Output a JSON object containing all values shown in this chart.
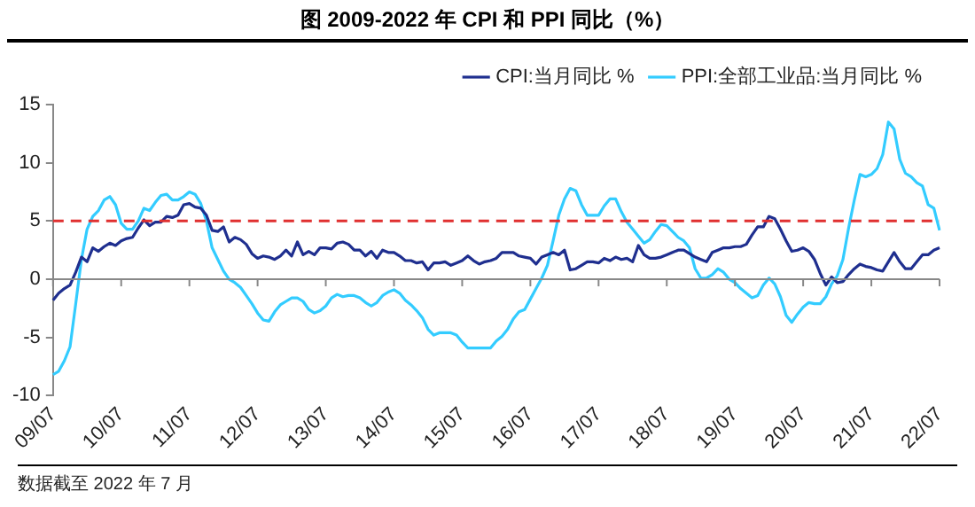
{
  "chart_data": {
    "type": "line",
    "title": "图  2009-2022 年 CPI 和 PPI 同比（%）",
    "categories": [
      "09/07",
      null,
      null,
      null,
      null,
      null,
      null,
      null,
      null,
      null,
      null,
      null,
      "10/07",
      null,
      null,
      null,
      null,
      null,
      null,
      null,
      null,
      null,
      null,
      null,
      "11/07",
      null,
      null,
      null,
      null,
      null,
      null,
      null,
      null,
      null,
      null,
      null,
      "12/07",
      null,
      null,
      null,
      null,
      null,
      null,
      null,
      null,
      null,
      null,
      null,
      "13/07",
      null,
      null,
      null,
      null,
      null,
      null,
      null,
      null,
      null,
      null,
      null,
      "14/07",
      null,
      null,
      null,
      null,
      null,
      null,
      null,
      null,
      null,
      null,
      null,
      "15/07",
      null,
      null,
      null,
      null,
      null,
      null,
      null,
      null,
      null,
      null,
      null,
      "16/07",
      null,
      null,
      null,
      null,
      null,
      null,
      null,
      null,
      null,
      null,
      null,
      "17/07",
      null,
      null,
      null,
      null,
      null,
      null,
      null,
      null,
      null,
      null,
      null,
      "18/07",
      null,
      null,
      null,
      null,
      null,
      null,
      null,
      null,
      null,
      null,
      null,
      "19/07",
      null,
      null,
      null,
      null,
      null,
      null,
      null,
      null,
      null,
      null,
      null,
      "20/07",
      null,
      null,
      null,
      null,
      null,
      null,
      null,
      null,
      null,
      null,
      null,
      "21/07",
      null,
      null,
      null,
      null,
      null,
      null,
      null,
      null,
      null,
      null,
      null,
      "22/07"
    ],
    "series": [
      {
        "name": "CPI:当月同比 %",
        "color": "#1f2f8f",
        "values": [
          -1.8,
          -1.2,
          -0.8,
          -0.5,
          0.6,
          1.9,
          1.5,
          2.7,
          2.4,
          2.8,
          3.1,
          2.9,
          3.3,
          3.5,
          3.6,
          4.4,
          5.1,
          4.6,
          4.9,
          4.9,
          5.4,
          5.3,
          5.5,
          6.4,
          6.5,
          6.2,
          6.1,
          5.5,
          4.2,
          4.1,
          4.5,
          3.2,
          3.6,
          3.4,
          3.0,
          2.2,
          1.8,
          2.0,
          1.9,
          1.7,
          2.0,
          2.5,
          2.0,
          3.2,
          2.1,
          2.4,
          2.1,
          2.7,
          2.7,
          2.6,
          3.1,
          3.2,
          3.0,
          2.5,
          2.5,
          2.0,
          2.4,
          1.8,
          2.5,
          2.3,
          2.3,
          2.0,
          1.6,
          1.6,
          1.4,
          1.5,
          0.8,
          1.4,
          1.4,
          1.5,
          1.2,
          1.4,
          1.6,
          2.0,
          1.6,
          1.3,
          1.5,
          1.6,
          1.8,
          2.3,
          2.3,
          2.3,
          2.0,
          1.9,
          1.8,
          1.3,
          1.9,
          2.1,
          2.3,
          2.1,
          2.5,
          0.8,
          0.9,
          1.2,
          1.5,
          1.5,
          1.4,
          1.8,
          1.6,
          1.9,
          1.7,
          1.8,
          1.5,
          2.9,
          2.1,
          1.8,
          1.8,
          1.9,
          2.1,
          2.3,
          2.5,
          2.5,
          2.2,
          1.9,
          1.7,
          1.5,
          2.3,
          2.5,
          2.7,
          2.7,
          2.8,
          2.8,
          3.0,
          3.8,
          4.5,
          4.5,
          5.4,
          5.2,
          4.3,
          3.3,
          2.4,
          2.5,
          2.7,
          2.4,
          1.7,
          0.5,
          -0.5,
          0.2,
          -0.3,
          -0.2,
          0.4,
          0.9,
          1.3,
          1.1,
          1.0,
          0.8,
          0.7,
          1.5,
          2.3,
          1.5,
          0.9,
          0.9,
          1.5,
          2.1,
          2.1,
          2.5,
          2.7
        ]
      },
      {
        "name": "PPI:全部工业品:当月同比 %",
        "color": "#33ccff",
        "values": [
          -8.2,
          -7.9,
          -7.0,
          -5.8,
          -2.1,
          1.7,
          4.3,
          5.4,
          5.9,
          6.8,
          7.1,
          6.4,
          4.8,
          4.3,
          4.3,
          5.0,
          6.1,
          5.9,
          6.6,
          7.2,
          7.3,
          6.8,
          6.8,
          7.1,
          7.5,
          7.3,
          6.5,
          5.0,
          2.7,
          1.7,
          0.7,
          0.0,
          -0.3,
          -0.7,
          -1.4,
          -2.1,
          -2.9,
          -3.5,
          -3.6,
          -2.8,
          -2.2,
          -1.9,
          -1.6,
          -1.6,
          -1.9,
          -2.6,
          -2.9,
          -2.7,
          -2.3,
          -1.6,
          -1.3,
          -1.5,
          -1.4,
          -1.4,
          -1.6,
          -2.0,
          -2.3,
          -2.0,
          -1.4,
          -1.1,
          -0.9,
          -1.2,
          -1.8,
          -2.2,
          -2.7,
          -3.3,
          -4.3,
          -4.8,
          -4.6,
          -4.6,
          -4.6,
          -4.8,
          -5.4,
          -5.9,
          -5.9,
          -5.9,
          -5.9,
          -5.9,
          -5.3,
          -4.9,
          -4.3,
          -3.4,
          -2.8,
          -2.6,
          -1.7,
          -0.8,
          0.1,
          1.2,
          3.3,
          5.5,
          6.9,
          7.8,
          7.6,
          6.4,
          5.5,
          5.5,
          5.5,
          6.3,
          6.9,
          6.9,
          5.8,
          4.9,
          4.3,
          3.7,
          3.1,
          3.4,
          4.1,
          4.7,
          4.6,
          4.1,
          3.6,
          3.3,
          2.7,
          0.9,
          0.1,
          0.1,
          0.4,
          0.9,
          0.6,
          0.0,
          -0.3,
          -0.8,
          -1.2,
          -1.6,
          -1.4,
          -0.5,
          0.1,
          -0.4,
          -1.5,
          -3.1,
          -3.7,
          -3.0,
          -2.4,
          -2.0,
          -2.1,
          -2.1,
          -1.5,
          -0.4,
          0.3,
          1.7,
          4.4,
          6.8,
          9.0,
          8.8,
          9.0,
          9.5,
          10.7,
          13.5,
          12.9,
          10.3,
          9.1,
          8.8,
          8.3,
          8.0,
          6.4,
          6.1,
          4.2
        ]
      }
    ],
    "ylim": [
      -10,
      15
    ],
    "yticks": [
      -10,
      -5,
      0,
      5,
      10,
      15
    ],
    "ref_lines": [
      {
        "axis": "y",
        "value": 5,
        "color": "#e03030",
        "line_style": "dashed"
      }
    ],
    "grid": false,
    "legend": "top right",
    "marker": "none",
    "line_style": "solid",
    "annotations": [
      "数据截至 2022 年 7 月"
    ]
  }
}
